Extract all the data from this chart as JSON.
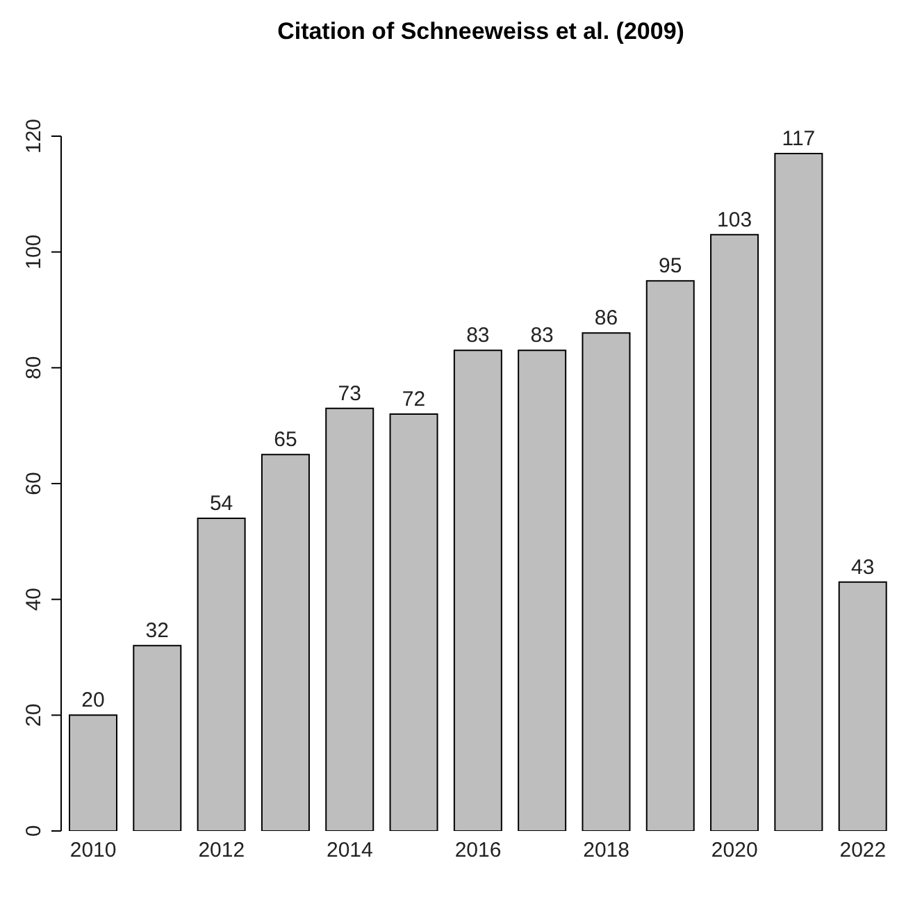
{
  "chart_data": {
    "type": "bar",
    "title": "Citation of Schneeweiss et al. (2009)",
    "categories": [
      "2010",
      null,
      "2012",
      null,
      "2014",
      null,
      "2016",
      null,
      "2018",
      null,
      "2020",
      null,
      "2022"
    ],
    "values": [
      20,
      32,
      54,
      65,
      73,
      72,
      83,
      83,
      86,
      95,
      103,
      117,
      43
    ],
    "color": "#bebebe",
    "ylim": [
      0,
      120
    ],
    "yticks": [
      0,
      20,
      40,
      60,
      80,
      100,
      120
    ],
    "data_labels": true,
    "grid": false,
    "legend": false
  }
}
